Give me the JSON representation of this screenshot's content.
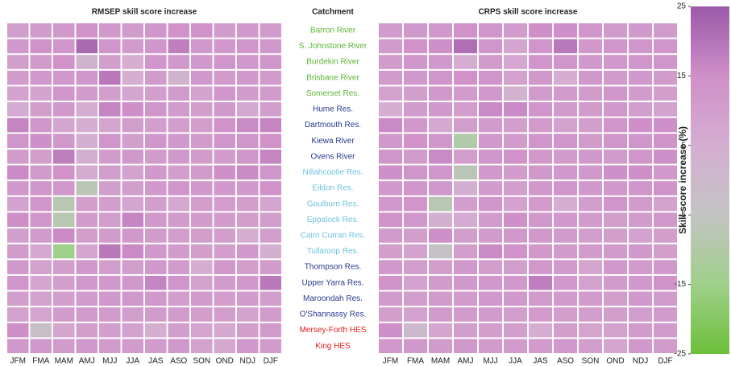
{
  "chart_data": {
    "type": "heatmap",
    "row_header": "Catchment",
    "rows": [
      "Barron River",
      "S. Johnstone River",
      "Burdekin River",
      "Brisbane River",
      "Somerset Res.",
      "Hume Res.",
      "Dartmouth Res.",
      "Kiewa River",
      "Ovens River",
      "Nillahcootie Res.",
      "Eildon Res.",
      "Goulburn Res.",
      "Eppalock Res.",
      "Cairn Curran Res.",
      "Tullaroop Res.",
      "Thompson Res.",
      "Upper Yarra Res.",
      "Maroondah Res.",
      "O'Shannassy Res.",
      "Mersey-Forth HES",
      "King HES"
    ],
    "row_colors": [
      "#5db536",
      "#5db536",
      "#5db536",
      "#5db536",
      "#5db536",
      "#2a3a8f",
      "#2a3a8f",
      "#2a3a8f",
      "#2a3a8f",
      "#6fc2e0",
      "#6fc2e0",
      "#6fc2e0",
      "#6fc2e0",
      "#6fc2e0",
      "#6fc2e0",
      "#2a3a8f",
      "#2a3a8f",
      "#2a3a8f",
      "#2a3a8f",
      "#e02020",
      "#e02020"
    ],
    "columns": [
      "JFM",
      "FMA",
      "MAM",
      "AMJ",
      "MJJ",
      "JJA",
      "JAS",
      "ASO",
      "SON",
      "OND",
      "NDJ",
      "DJF"
    ],
    "colormap": [
      "#6cbf3a",
      "#9fd08a",
      "#c3c3c3",
      "#d5aed2",
      "#cf8fc8",
      "#9b59a8"
    ],
    "panels": [
      {
        "title": "RMSEP skill score increase",
        "values": [
          [
            10,
            11,
            12,
            14,
            12,
            11,
            13,
            14,
            14,
            11,
            12,
            11
          ],
          [
            12,
            14,
            13,
            22,
            13,
            11,
            13,
            18,
            12,
            12,
            13,
            12
          ],
          [
            10,
            11,
            14,
            2,
            10,
            5,
            13,
            12,
            12,
            13,
            12,
            13
          ],
          [
            11,
            12,
            12,
            13,
            19,
            5,
            11,
            2,
            12,
            11,
            12,
            11
          ],
          [
            9,
            9,
            13,
            11,
            10,
            8,
            10,
            11,
            9,
            13,
            11,
            11
          ],
          [
            6,
            10,
            12,
            5,
            17,
            15,
            13,
            11,
            10,
            12,
            7,
            10
          ],
          [
            17,
            13,
            8,
            5,
            8,
            10,
            10,
            10,
            10,
            14,
            16,
            17
          ],
          [
            13,
            15,
            12,
            4,
            13,
            10,
            13,
            12,
            11,
            13,
            13,
            14
          ],
          [
            11,
            10,
            18,
            4,
            11,
            12,
            11,
            12,
            11,
            11,
            13,
            17
          ],
          [
            16,
            11,
            14,
            6,
            10,
            9,
            12,
            10,
            11,
            15,
            16,
            13
          ],
          [
            12,
            13,
            12,
            -7,
            10,
            10,
            12,
            13,
            12,
            12,
            12,
            14
          ],
          [
            9,
            13,
            -8,
            10,
            10,
            8,
            10,
            7,
            10,
            10,
            10,
            8
          ],
          [
            15,
            13,
            -8,
            11,
            10,
            17,
            12,
            11,
            11,
            11,
            10,
            10
          ],
          [
            10,
            11,
            16,
            10,
            11,
            12,
            11,
            10,
            10,
            10,
            5,
            10
          ],
          [
            11,
            7,
            -15,
            8,
            19,
            16,
            12,
            11,
            10,
            10,
            12,
            4
          ],
          [
            12,
            9,
            10,
            12,
            10,
            10,
            12,
            11,
            5,
            12,
            10,
            11
          ],
          [
            13,
            8,
            10,
            12,
            12,
            12,
            17,
            13,
            9,
            11,
            12,
            19
          ],
          [
            10,
            9,
            10,
            11,
            12,
            12,
            12,
            10,
            11,
            10,
            11,
            10
          ],
          [
            9,
            8,
            11,
            11,
            11,
            10,
            11,
            11,
            10,
            10,
            9,
            11
          ],
          [
            15,
            -3,
            8,
            10,
            10,
            9,
            5,
            10,
            8,
            7,
            10,
            11
          ],
          [
            12,
            12,
            11,
            12,
            11,
            11,
            11,
            12,
            9,
            7,
            12,
            11
          ]
        ]
      },
      {
        "title": "CRPS skill score increase",
        "values": [
          [
            11,
            12,
            12,
            14,
            13,
            11,
            15,
            15,
            13,
            11,
            12,
            11
          ],
          [
            11,
            14,
            15,
            21,
            13,
            8,
            13,
            19,
            12,
            13,
            13,
            13
          ],
          [
            11,
            13,
            12,
            5,
            11,
            7,
            13,
            13,
            12,
            12,
            13,
            13
          ],
          [
            11,
            12,
            13,
            14,
            13,
            9,
            12,
            5,
            12,
            11,
            12,
            11
          ],
          [
            9,
            10,
            12,
            11,
            12,
            3,
            11,
            11,
            11,
            13,
            11,
            10
          ],
          [
            5,
            11,
            12,
            10,
            16,
            16,
            13,
            11,
            11,
            12,
            10,
            9
          ],
          [
            16,
            12,
            7,
            10,
            11,
            10,
            11,
            9,
            10,
            13,
            15,
            15
          ],
          [
            12,
            14,
            13,
            -10,
            12,
            11,
            13,
            13,
            11,
            13,
            13,
            14
          ],
          [
            13,
            11,
            16,
            10,
            13,
            14,
            12,
            11,
            12,
            11,
            13,
            15
          ],
          [
            15,
            13,
            13,
            -7,
            12,
            11,
            12,
            12,
            12,
            15,
            15,
            12
          ],
          [
            12,
            13,
            12,
            4,
            11,
            10,
            12,
            13,
            12,
            12,
            13,
            14
          ],
          [
            12,
            13,
            -8,
            10,
            13,
            9,
            11,
            5,
            10,
            13,
            11,
            9
          ],
          [
            14,
            12,
            4,
            6,
            11,
            15,
            12,
            12,
            11,
            10,
            11,
            12
          ],
          [
            11,
            10,
            15,
            10,
            11,
            12,
            12,
            11,
            10,
            10,
            9,
            10
          ],
          [
            10,
            9,
            -4,
            10,
            16,
            14,
            12,
            11,
            11,
            11,
            12,
            10
          ],
          [
            12,
            10,
            10,
            12,
            10,
            10,
            12,
            11,
            8,
            12,
            11,
            12
          ],
          [
            14,
            9,
            11,
            12,
            12,
            12,
            18,
            12,
            9,
            11,
            12,
            14
          ],
          [
            11,
            10,
            11,
            11,
            12,
            12,
            11,
            11,
            11,
            10,
            12,
            11
          ],
          [
            10,
            9,
            11,
            11,
            11,
            10,
            11,
            10,
            10,
            10,
            10,
            11
          ],
          [
            15,
            0,
            8,
            10,
            10,
            10,
            5,
            10,
            8,
            9,
            11,
            11
          ],
          [
            12,
            12,
            11,
            12,
            11,
            11,
            11,
            12,
            10,
            8,
            12,
            11
          ]
        ]
      }
    ],
    "colorbar": {
      "label": "Skill score increase (%)",
      "lim": [
        -25,
        25
      ],
      "ticks": [
        25,
        15,
        5,
        -5,
        -15,
        -25
      ]
    }
  }
}
